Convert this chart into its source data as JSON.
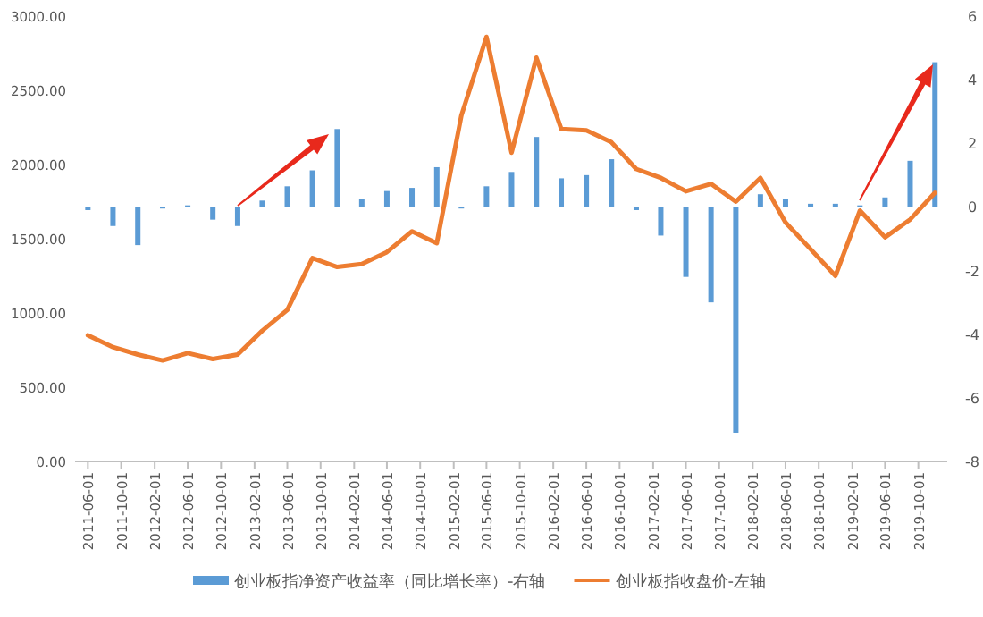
{
  "chart_data": {
    "type": "bar",
    "x": [
      "2011-06",
      "2011-09",
      "2011-12",
      "2012-03",
      "2012-06",
      "2012-09",
      "2012-12",
      "2013-03",
      "2013-06",
      "2013-09",
      "2013-12",
      "2014-03",
      "2014-06",
      "2014-09",
      "2014-12",
      "2015-03",
      "2015-06",
      "2015-09",
      "2015-12",
      "2016-03",
      "2016-06",
      "2016-09",
      "2016-12",
      "2017-03",
      "2017-06",
      "2017-09",
      "2017-12",
      "2018-03",
      "2018-06",
      "2018-09",
      "2018-12",
      "2019-03",
      "2019-06",
      "2019-09",
      "2019-12"
    ],
    "series": [
      {
        "name": "创业板指净资产收益率（同比增长率）-右轴",
        "axis": "y2",
        "color": "#5b9bd5",
        "values": [
          -0.1,
          -0.6,
          -1.2,
          -0.05,
          0.05,
          -0.4,
          -0.6,
          0.2,
          0.65,
          1.15,
          2.45,
          0.25,
          0.5,
          0.6,
          1.25,
          -0.05,
          0.65,
          1.1,
          2.2,
          0.9,
          1.0,
          1.5,
          -0.1,
          -0.9,
          -2.2,
          -3.0,
          -7.1,
          0.4,
          0.25,
          0.1,
          0.1,
          0.05,
          0.3,
          1.45,
          4.55
        ]
      },
      {
        "name": "创业板指收盘价-左轴",
        "type": "line",
        "color": "#ed7d31",
        "values": [
          850,
          770,
          720,
          680,
          730,
          690,
          720,
          880,
          1020,
          1370,
          1310,
          1330,
          1410,
          1550,
          1470,
          2330,
          2860,
          2080,
          2720,
          2240,
          2230,
          2150,
          1970,
          1910,
          1820,
          1870,
          1750,
          1910,
          1610,
          1430,
          1250,
          1690,
          1510,
          1630,
          1810
        ]
      }
    ],
    "xlim": [
      "2011-04-15",
      "2020-01-15"
    ],
    "xticks": [
      "2011-06-01",
      "2011-10-01",
      "2012-02-01",
      "2012-06-01",
      "2012-10-01",
      "2013-02-01",
      "2013-06-01",
      "2013-10-01",
      "2014-02-01",
      "2014-06-01",
      "2014-10-01",
      "2015-02-01",
      "2015-06-01",
      "2015-10-01",
      "2016-02-01",
      "2016-06-01",
      "2016-10-01",
      "2017-02-01",
      "2017-06-01",
      "2017-10-01",
      "2018-02-01",
      "2018-06-01",
      "2018-10-01",
      "2019-02-01",
      "2019-06-01",
      "2019-10-01"
    ],
    "ylim": [
      0,
      3000
    ],
    "yticks": [
      {
        "value": 0,
        "label": "0.00"
      },
      {
        "value": 500,
        "label": "500.00"
      },
      {
        "value": 1000,
        "label": "1000.00"
      },
      {
        "value": 1500,
        "label": "1500.00"
      },
      {
        "value": 2000,
        "label": "2000.00"
      },
      {
        "value": 2500,
        "label": "2500.00"
      },
      {
        "value": 3000,
        "label": "3000.00"
      }
    ],
    "y2lim": [
      -8,
      6
    ],
    "y2ticks": [
      -8,
      -6,
      -4,
      -2,
      0,
      2,
      4,
      6
    ],
    "grid": false,
    "legend": "bottom"
  }
}
